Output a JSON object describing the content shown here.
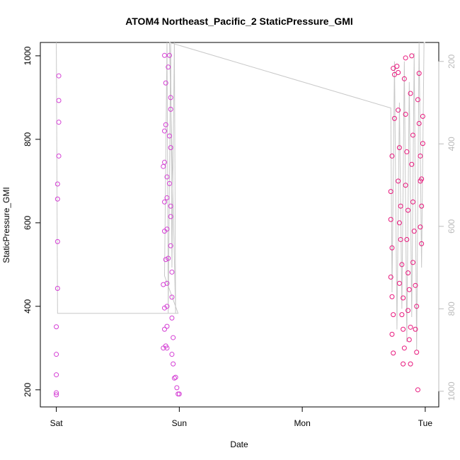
{
  "chart_data": {
    "type": "scatter",
    "title": "ATOM4 Northeast_Pacific_2 StaticPressure_GMI",
    "x_label": "Date",
    "y_label": "StaticPressure_GMI",
    "xlim": [
      -0.13,
      3.11
    ],
    "xticks": [
      {
        "value": 0,
        "label": "Sat"
      },
      {
        "value": 1,
        "label": "Sun"
      },
      {
        "value": 2,
        "label": "Mon"
      },
      {
        "value": 3,
        "label": "Tue"
      }
    ],
    "ylim": [
      159,
      1032
    ],
    "yticks": [
      200,
      400,
      600,
      800,
      1000
    ],
    "y2lim": [
      1038,
      154
    ],
    "y2ticks": [
      200,
      400,
      600,
      800,
      1000
    ],
    "series": [
      {
        "type": "line",
        "axis": "y2",
        "color": "#c8c8c8",
        "x": [
          0.0,
          0.01,
          0.99,
          0.88,
          0.9,
          0.91,
          0.93,
          0.94,
          0.96,
          0.97,
          0.92,
          2.72,
          2.73,
          2.75,
          2.77,
          2.79,
          2.81,
          2.83,
          2.85,
          2.87,
          2.89,
          2.91,
          2.93,
          2.95,
          2.97,
          2.99,
          3.0
        ],
        "values": [
          154,
          811,
          811,
          720,
          154,
          811,
          154,
          700,
          154,
          811,
          154,
          313,
          760,
          200,
          850,
          300,
          800,
          200,
          880,
          250,
          820,
          180,
          900,
          154,
          700,
          154,
          154
        ]
      },
      {
        "type": "scatter",
        "color": "#d43fd4",
        "x": [
          0.02,
          0.02,
          0.02,
          0.02,
          0.01,
          0.01,
          0.01,
          0.01,
          0.0,
          0.0,
          0.0,
          0.0,
          0.0,
          0.88,
          0.89,
          0.88,
          0.89,
          0.87,
          0.88,
          0.9,
          0.88,
          0.9,
          0.88,
          0.9,
          0.89,
          0.91,
          0.87,
          0.9,
          0.88,
          0.9,
          0.88,
          0.9,
          0.87,
          0.89,
          0.9,
          0.91,
          0.92,
          0.93,
          0.93,
          0.92,
          0.93,
          0.92,
          0.93,
          0.93,
          0.93,
          0.94,
          0.94,
          0.94,
          0.95,
          0.94,
          0.95,
          0.96,
          0.97,
          0.98,
          0.99,
          1.0
        ],
        "values": [
          952,
          893,
          841,
          760,
          693,
          657,
          555,
          443,
          351,
          285,
          236,
          193,
          188,
          1001,
          935,
          820,
          835,
          735,
          745,
          710,
          650,
          660,
          580,
          585,
          512,
          515,
          452,
          455,
          396,
          400,
          345,
          352,
          300,
          305,
          300,
          973,
          1001,
          900,
          872,
          808,
          780,
          694,
          640,
          615,
          545,
          482,
          422,
          372,
          325,
          285,
          262,
          228,
          230,
          205,
          190,
          190
        ]
      },
      {
        "type": "scatter",
        "color": "#e8177c",
        "x": [
          2.72,
          2.72,
          2.73,
          2.72,
          2.73,
          2.74,
          2.73,
          2.74,
          2.75,
          2.74,
          2.75,
          2.73,
          2.77,
          2.78,
          2.78,
          2.79,
          2.78,
          2.8,
          2.79,
          2.8,
          2.81,
          2.79,
          2.82,
          2.81,
          2.82,
          2.83,
          2.82,
          2.84,
          2.83,
          2.84,
          2.85,
          2.84,
          2.86,
          2.85,
          2.86,
          2.87,
          2.86,
          2.88,
          2.87,
          2.88,
          2.89,
          2.88,
          2.9,
          2.89,
          2.9,
          2.91,
          2.9,
          2.92,
          2.93,
          2.92,
          2.93,
          2.94,
          2.95,
          2.94,
          2.95,
          2.96,
          2.96,
          2.97,
          2.96,
          2.97,
          2.98,
          2.97,
          2.98
        ],
        "values": [
          675,
          608,
          540,
          470,
          423,
          380,
          333,
          288,
          955,
          970,
          850,
          760,
          975,
          960,
          870,
          780,
          700,
          640,
          600,
          560,
          500,
          455,
          420,
          380,
          345,
          300,
          262,
          995,
          945,
          860,
          770,
          690,
          630,
          560,
          480,
          440,
          390,
          350,
          320,
          262,
          1000,
          910,
          810,
          740,
          650,
          580,
          505,
          450,
          400,
          345,
          290,
          200,
          958,
          895,
          838,
          760,
          700,
          640,
          590,
          550,
          790,
          705,
          855
        ]
      }
    ]
  }
}
